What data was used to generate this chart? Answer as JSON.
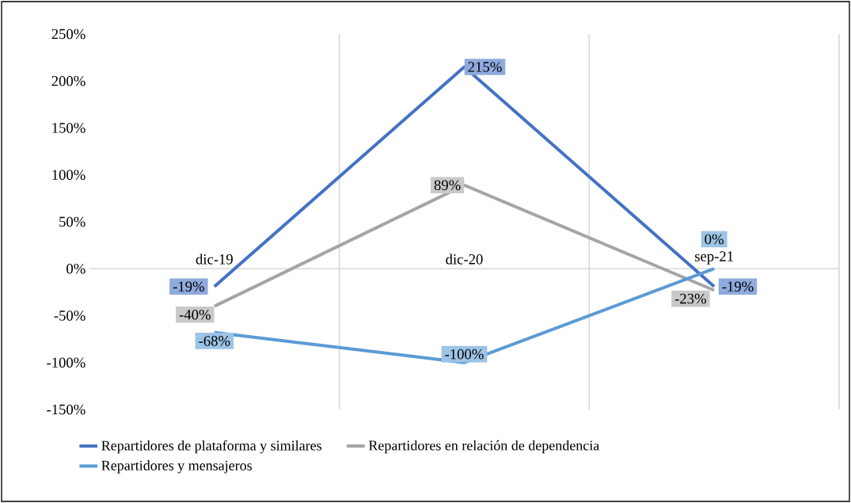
{
  "chart_data": {
    "type": "line",
    "categories": [
      "dic-19",
      "dic-20",
      "sep-21"
    ],
    "ylim": [
      -150,
      250
    ],
    "yticks": [
      {
        "value": -150,
        "label": "-150%"
      },
      {
        "value": -100,
        "label": "-100%"
      },
      {
        "value": -50,
        "label": "-50%"
      },
      {
        "value": 0,
        "label": "0%"
      },
      {
        "value": 50,
        "label": "50%"
      },
      {
        "value": 100,
        "label": "100%"
      },
      {
        "value": 150,
        "label": "150%"
      },
      {
        "value": 200,
        "label": "200%"
      },
      {
        "value": 250,
        "label": "250%"
      }
    ],
    "grid": "x",
    "legend": "bottom",
    "series": [
      {
        "name": "Repartidores de plataforma y similares",
        "color": "#4472c4",
        "values": [
          -19,
          215,
          -19
        ],
        "value_labels": [
          "-19%",
          "215%",
          "-19%"
        ]
      },
      {
        "name": "Repartidores en relación de dependencia",
        "color": "#a5a5a5",
        "values": [
          -40,
          89,
          -23
        ],
        "value_labels": [
          "-40%",
          "89%",
          "-23%"
        ]
      },
      {
        "name": "Repartidores y mensajeros",
        "color": "#5b9bd5",
        "values": [
          -68,
          -100,
          0
        ],
        "value_labels": [
          "-68%",
          "-100%",
          "0%"
        ]
      }
    ]
  }
}
